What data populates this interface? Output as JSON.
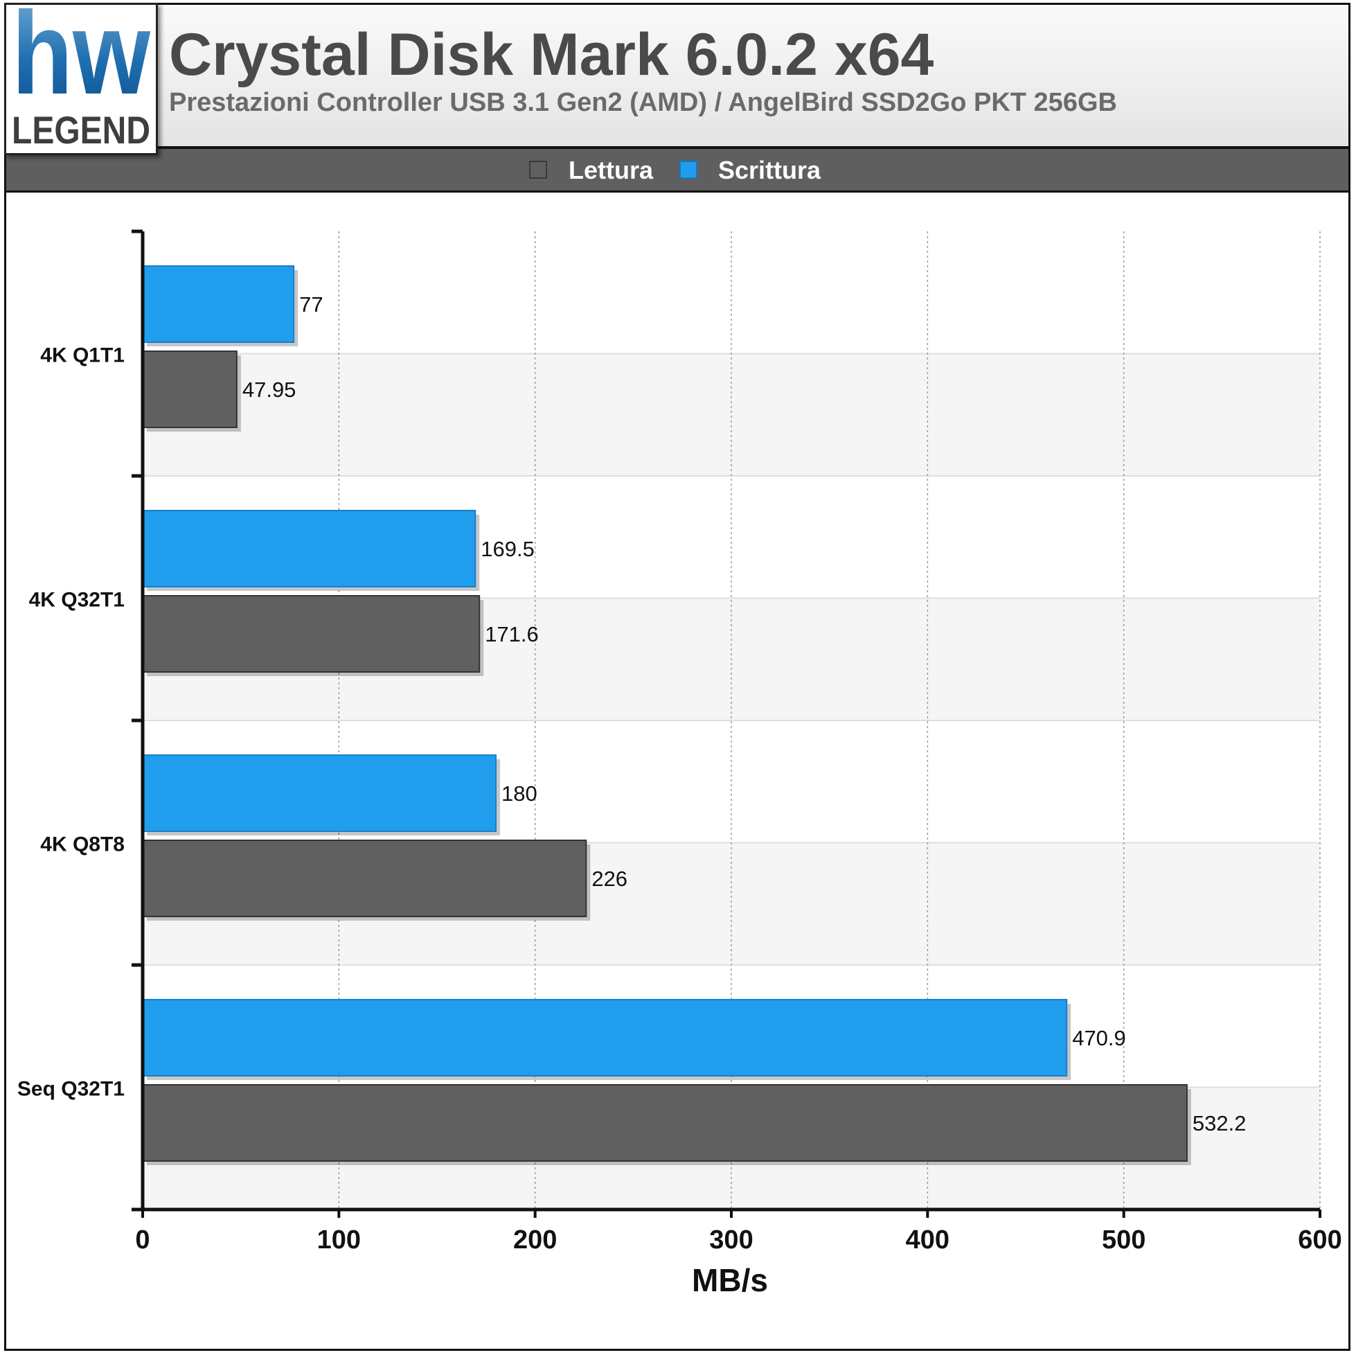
{
  "header": {
    "logo_top": "hw",
    "logo_bottom": "LEGEND",
    "title": "Crystal Disk Mark 6.0.2 x64",
    "subtitle": "Prestazioni Controller USB 3.1 Gen2 (AMD) / AngelBird SSD2Go PKT 256GB"
  },
  "colors": {
    "lettura": "#606060",
    "scrittura": "#219ded"
  },
  "chart_data": {
    "type": "bar",
    "orientation": "horizontal",
    "categories": [
      "4K Q1T1",
      "4K Q32T1",
      "4K Q8T8",
      "Seq Q32T1"
    ],
    "series": [
      {
        "name": "Scrittura",
        "values": [
          77,
          169.5,
          180,
          470.9
        ],
        "value_labels": [
          "77",
          "169.5",
          "180",
          "470.9"
        ]
      },
      {
        "name": "Lettura",
        "values": [
          47.95,
          171.6,
          226,
          532.2
        ],
        "value_labels": [
          "47.95",
          "171.6",
          "226",
          "532.2"
        ]
      }
    ],
    "legend": [
      {
        "name": "Lettura"
      },
      {
        "name": "Scrittura"
      }
    ],
    "xlabel": "MB/s",
    "xlim": [
      0,
      600
    ],
    "xticks": [
      0,
      100,
      200,
      300,
      400,
      500,
      600
    ],
    "xtick_labels": [
      "0",
      "100",
      "200",
      "300",
      "400",
      "500",
      "600"
    ],
    "grid": true,
    "legend_position": "top"
  }
}
